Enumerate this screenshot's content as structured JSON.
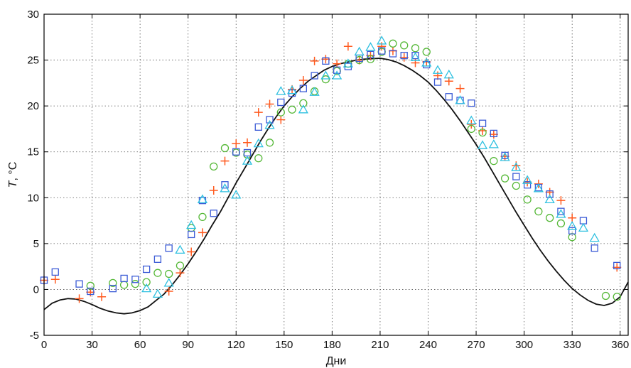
{
  "chart_data": {
    "type": "scatter",
    "xlabel": "Дни",
    "ylabel_italic": "T",
    "ylabel_rest": ", °C",
    "xlim": [
      0,
      365
    ],
    "ylim": [
      -5,
      30
    ],
    "xticks": [
      0,
      30,
      60,
      90,
      120,
      150,
      180,
      210,
      240,
      270,
      300,
      330,
      360
    ],
    "yticks": [
      -5,
      0,
      5,
      10,
      15,
      20,
      25,
      30
    ],
    "grid": true,
    "series": [
      {
        "marker": "plus",
        "color": "#ff5a1f",
        "points": [
          [
            0,
            1.0
          ],
          [
            7,
            1.1
          ],
          [
            22,
            -1.0
          ],
          [
            29,
            -0.3
          ],
          [
            36,
            -0.8
          ],
          [
            78,
            -0.2
          ],
          [
            85,
            1.8
          ],
          [
            92,
            4.1
          ],
          [
            99,
            6.2
          ],
          [
            106,
            10.8
          ],
          [
            113,
            14.0
          ],
          [
            120,
            15.9
          ],
          [
            127,
            16.0
          ],
          [
            134,
            19.3
          ],
          [
            141,
            20.2
          ],
          [
            148,
            18.5
          ],
          [
            155,
            21.8
          ],
          [
            162,
            22.8
          ],
          [
            169,
            24.9
          ],
          [
            176,
            25.1
          ],
          [
            183,
            24.6
          ],
          [
            190,
            26.5
          ],
          [
            197,
            25.0
          ],
          [
            204,
            25.5
          ],
          [
            211,
            26.5
          ],
          [
            218,
            26.0
          ],
          [
            225,
            25.3
          ],
          [
            232,
            24.7
          ],
          [
            239,
            24.8
          ],
          [
            246,
            23.3
          ],
          [
            253,
            22.7
          ],
          [
            260,
            21.9
          ],
          [
            267,
            18.0
          ],
          [
            274,
            17.3
          ],
          [
            281,
            16.9
          ],
          [
            288,
            14.5
          ],
          [
            295,
            13.5
          ],
          [
            302,
            11.7
          ],
          [
            309,
            11.5
          ],
          [
            316,
            10.6
          ],
          [
            323,
            9.7
          ],
          [
            330,
            7.8
          ],
          [
            358,
            2.4
          ]
        ]
      },
      {
        "marker": "circle",
        "color": "#55b837",
        "points": [
          [
            29,
            0.4
          ],
          [
            43,
            0.7
          ],
          [
            50,
            0.5
          ],
          [
            57,
            0.6
          ],
          [
            64,
            0.8
          ],
          [
            71,
            1.8
          ],
          [
            78,
            1.7
          ],
          [
            85,
            2.6
          ],
          [
            92,
            6.7
          ],
          [
            99,
            7.9
          ],
          [
            106,
            13.4
          ],
          [
            113,
            15.4
          ],
          [
            120,
            14.9
          ],
          [
            127,
            14.7
          ],
          [
            134,
            14.3
          ],
          [
            141,
            16.0
          ],
          [
            148,
            19.3
          ],
          [
            155,
            19.6
          ],
          [
            162,
            20.3
          ],
          [
            169,
            21.6
          ],
          [
            176,
            22.9
          ],
          [
            183,
            23.8
          ],
          [
            190,
            24.6
          ],
          [
            197,
            25.0
          ],
          [
            204,
            25.1
          ],
          [
            211,
            25.9
          ],
          [
            218,
            26.8
          ],
          [
            225,
            26.6
          ],
          [
            232,
            26.3
          ],
          [
            239,
            25.9
          ],
          [
            267,
            17.5
          ],
          [
            274,
            17.1
          ],
          [
            281,
            14.0
          ],
          [
            288,
            12.1
          ],
          [
            295,
            11.3
          ],
          [
            302,
            9.8
          ],
          [
            309,
            8.5
          ],
          [
            316,
            7.8
          ],
          [
            323,
            7.2
          ],
          [
            330,
            5.7
          ],
          [
            351,
            -0.7
          ],
          [
            358,
            -0.8
          ]
        ]
      },
      {
        "marker": "square",
        "color": "#3b5bd6",
        "points": [
          [
            0,
            1.0
          ],
          [
            7,
            1.9
          ],
          [
            22,
            0.6
          ],
          [
            29,
            -0.2
          ],
          [
            43,
            0.1
          ],
          [
            50,
            1.2
          ],
          [
            57,
            1.1
          ],
          [
            64,
            2.2
          ],
          [
            71,
            3.3
          ],
          [
            78,
            4.5
          ],
          [
            92,
            6.0
          ],
          [
            99,
            9.7
          ],
          [
            106,
            8.3
          ],
          [
            113,
            11.4
          ],
          [
            120,
            15.0
          ],
          [
            127,
            14.9
          ],
          [
            134,
            17.7
          ],
          [
            141,
            18.5
          ],
          [
            148,
            20.4
          ],
          [
            155,
            21.4
          ],
          [
            162,
            21.9
          ],
          [
            169,
            23.3
          ],
          [
            176,
            24.9
          ],
          [
            183,
            23.9
          ],
          [
            190,
            24.3
          ],
          [
            197,
            25.2
          ],
          [
            204,
            25.6
          ],
          [
            211,
            26.0
          ],
          [
            218,
            25.7
          ],
          [
            225,
            25.5
          ],
          [
            232,
            25.5
          ],
          [
            239,
            24.5
          ],
          [
            246,
            22.6
          ],
          [
            253,
            21.0
          ],
          [
            260,
            20.6
          ],
          [
            267,
            20.3
          ],
          [
            274,
            18.1
          ],
          [
            281,
            17.0
          ],
          [
            288,
            14.6
          ],
          [
            295,
            12.3
          ],
          [
            302,
            11.4
          ],
          [
            309,
            11.1
          ],
          [
            316,
            10.4
          ],
          [
            323,
            8.5
          ],
          [
            330,
            6.4
          ],
          [
            337,
            7.5
          ],
          [
            344,
            4.5
          ],
          [
            358,
            2.6
          ]
        ]
      },
      {
        "marker": "triangle",
        "color": "#2fc0e0",
        "points": [
          [
            64,
            0.1
          ],
          [
            71,
            -0.5
          ],
          [
            78,
            0.7
          ],
          [
            85,
            4.3
          ],
          [
            92,
            7.0
          ],
          [
            99,
            9.8
          ],
          [
            113,
            11.0
          ],
          [
            120,
            10.3
          ],
          [
            127,
            14.0
          ],
          [
            134,
            15.9
          ],
          [
            141,
            17.9
          ],
          [
            148,
            21.6
          ],
          [
            155,
            21.7
          ],
          [
            162,
            19.6
          ],
          [
            169,
            21.5
          ],
          [
            176,
            23.3
          ],
          [
            183,
            23.3
          ],
          [
            190,
            24.6
          ],
          [
            197,
            25.9
          ],
          [
            204,
            26.4
          ],
          [
            211,
            27.1
          ],
          [
            232,
            25.3
          ],
          [
            239,
            24.7
          ],
          [
            246,
            23.9
          ],
          [
            253,
            23.4
          ],
          [
            260,
            20.6
          ],
          [
            267,
            18.4
          ],
          [
            274,
            15.7
          ],
          [
            281,
            15.8
          ],
          [
            288,
            14.4
          ],
          [
            295,
            13.3
          ],
          [
            302,
            11.9
          ],
          [
            309,
            11.0
          ],
          [
            316,
            9.8
          ],
          [
            323,
            8.2
          ],
          [
            330,
            6.9
          ],
          [
            337,
            6.7
          ],
          [
            344,
            5.6
          ]
        ]
      }
    ],
    "line": {
      "color": "#111111",
      "points": [
        [
          0,
          -2.2
        ],
        [
          5,
          -1.5
        ],
        [
          10,
          -1.15
        ],
        [
          15,
          -1.0
        ],
        [
          20,
          -1.05
        ],
        [
          25,
          -1.3
        ],
        [
          30,
          -1.65
        ],
        [
          35,
          -2.05
        ],
        [
          40,
          -2.35
        ],
        [
          45,
          -2.55
        ],
        [
          50,
          -2.65
        ],
        [
          55,
          -2.55
        ],
        [
          60,
          -2.3
        ],
        [
          65,
          -1.9
        ],
        [
          70,
          -1.2
        ],
        [
          75,
          -0.5
        ],
        [
          80,
          0.5
        ],
        [
          85,
          1.6
        ],
        [
          90,
          2.8
        ],
        [
          95,
          4.1
        ],
        [
          100,
          5.5
        ],
        [
          105,
          7.0
        ],
        [
          110,
          8.4
        ],
        [
          115,
          10.0
        ],
        [
          120,
          11.6
        ],
        [
          125,
          13.1
        ],
        [
          130,
          14.6
        ],
        [
          135,
          16.1
        ],
        [
          140,
          17.5
        ],
        [
          145,
          18.8
        ],
        [
          150,
          20.0
        ],
        [
          155,
          21.0
        ],
        [
          160,
          21.9
        ],
        [
          165,
          22.7
        ],
        [
          170,
          23.3
        ],
        [
          175,
          23.9
        ],
        [
          180,
          24.3
        ],
        [
          185,
          24.6
        ],
        [
          190,
          24.8
        ],
        [
          195,
          25.0
        ],
        [
          200,
          25.1
        ],
        [
          205,
          25.15
        ],
        [
          210,
          25.2
        ],
        [
          215,
          25.05
        ],
        [
          220,
          24.8
        ],
        [
          225,
          24.4
        ],
        [
          230,
          23.9
        ],
        [
          235,
          23.3
        ],
        [
          240,
          22.6
        ],
        [
          245,
          21.7
        ],
        [
          250,
          20.7
        ],
        [
          255,
          19.6
        ],
        [
          260,
          18.4
        ],
        [
          265,
          17.1
        ],
        [
          270,
          15.8
        ],
        [
          275,
          14.4
        ],
        [
          280,
          12.9
        ],
        [
          285,
          11.4
        ],
        [
          290,
          9.9
        ],
        [
          295,
          8.4
        ],
        [
          300,
          7.0
        ],
        [
          305,
          5.6
        ],
        [
          310,
          4.3
        ],
        [
          315,
          3.1
        ],
        [
          320,
          2.0
        ],
        [
          325,
          1.0
        ],
        [
          330,
          0.1
        ],
        [
          335,
          -0.6
        ],
        [
          340,
          -1.2
        ],
        [
          345,
          -1.6
        ],
        [
          350,
          -1.75
        ],
        [
          355,
          -1.5
        ],
        [
          360,
          -0.8
        ],
        [
          365,
          0.8
        ]
      ]
    }
  }
}
